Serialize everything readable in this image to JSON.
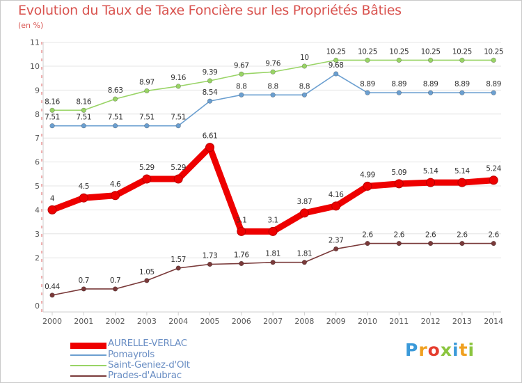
{
  "header": {
    "title": "Evolution du Taux de Taxe Foncière sur les Propriétés Bâties",
    "unit": "(en %)"
  },
  "brand": {
    "letters": [
      "P",
      "r",
      "o",
      "x",
      "i",
      "t",
      "i"
    ],
    "colors": [
      "#3b9ad9",
      "#f0a020",
      "#e53d2e",
      "#8bc53f",
      "#3b9ad9",
      "#f0a020",
      "#8bc53f"
    ]
  },
  "chart_data": {
    "type": "line",
    "title": "Evolution du Taux de Taxe Foncière sur les Propriétés Bâties",
    "ylabel": "(en %)",
    "xlabel": "",
    "ylim": [
      0,
      11
    ],
    "yticks": [
      0,
      2,
      3,
      4,
      5,
      6,
      7,
      8,
      9,
      10,
      11
    ],
    "categories": [
      "2000",
      "2001",
      "2002",
      "2003",
      "2004",
      "2005",
      "2006",
      "2007",
      "2008",
      "2009",
      "2010",
      "2011",
      "2012",
      "2013",
      "2014"
    ],
    "series": [
      {
        "name": "AURELLE-VERLAC",
        "color": "#ee0000",
        "values": [
          4,
          4.5,
          4.6,
          5.29,
          5.29,
          6.61,
          3.1,
          3.1,
          3.87,
          4.16,
          4.99,
          5.09,
          5.14,
          5.14,
          5.24
        ],
        "labels": [
          "4",
          "4.5",
          "4.6",
          "5.29",
          "5.29",
          "6.61",
          "3.1",
          "3.1",
          "3.87",
          "4.16",
          "4.99",
          "5.09",
          "5.14",
          "5.14",
          "5.24"
        ]
      },
      {
        "name": "Pomayrols",
        "color": "#6b9fd0",
        "values": [
          7.51,
          7.51,
          7.51,
          7.51,
          7.51,
          8.54,
          8.8,
          8.8,
          8.8,
          9.68,
          8.89,
          8.89,
          8.89,
          8.89,
          8.89
        ],
        "labels": [
          "7.51",
          "7.51",
          "7.51",
          "7.51",
          "7.51",
          "8.54",
          "8.8",
          "8.8",
          "8.8",
          "9.68",
          "8.89",
          "8.89",
          "8.89",
          "8.89",
          "8.89"
        ]
      },
      {
        "name": "Saint-Geniez-d'Olt",
        "color": "#99d466",
        "values": [
          8.16,
          8.16,
          8.63,
          8.97,
          9.16,
          9.39,
          9.67,
          9.76,
          10,
          10.25,
          10.25,
          10.25,
          10.25,
          10.25,
          10.25
        ],
        "labels": [
          "8.16",
          "8.16",
          "8.63",
          "8.97",
          "9.16",
          "9.39",
          "9.67",
          "9.76",
          "10",
          "10.25",
          "10.25",
          "10.25",
          "10.25",
          "10.25",
          "10.25"
        ]
      },
      {
        "name": "Prades-d'Aubrac",
        "color": "#7a3a3a",
        "values": [
          0.44,
          0.7,
          0.7,
          1.05,
          1.57,
          1.73,
          1.76,
          1.81,
          1.81,
          2.37,
          2.6,
          2.6,
          2.6,
          2.6,
          2.6
        ],
        "labels": [
          "0.44",
          "0.7",
          "0.7",
          "1.05",
          "1.57",
          "1.73",
          "1.76",
          "1.81",
          "1.81",
          "2.37",
          "2.6",
          "2.6",
          "2.6",
          "2.6",
          "2.6"
        ]
      }
    ]
  }
}
